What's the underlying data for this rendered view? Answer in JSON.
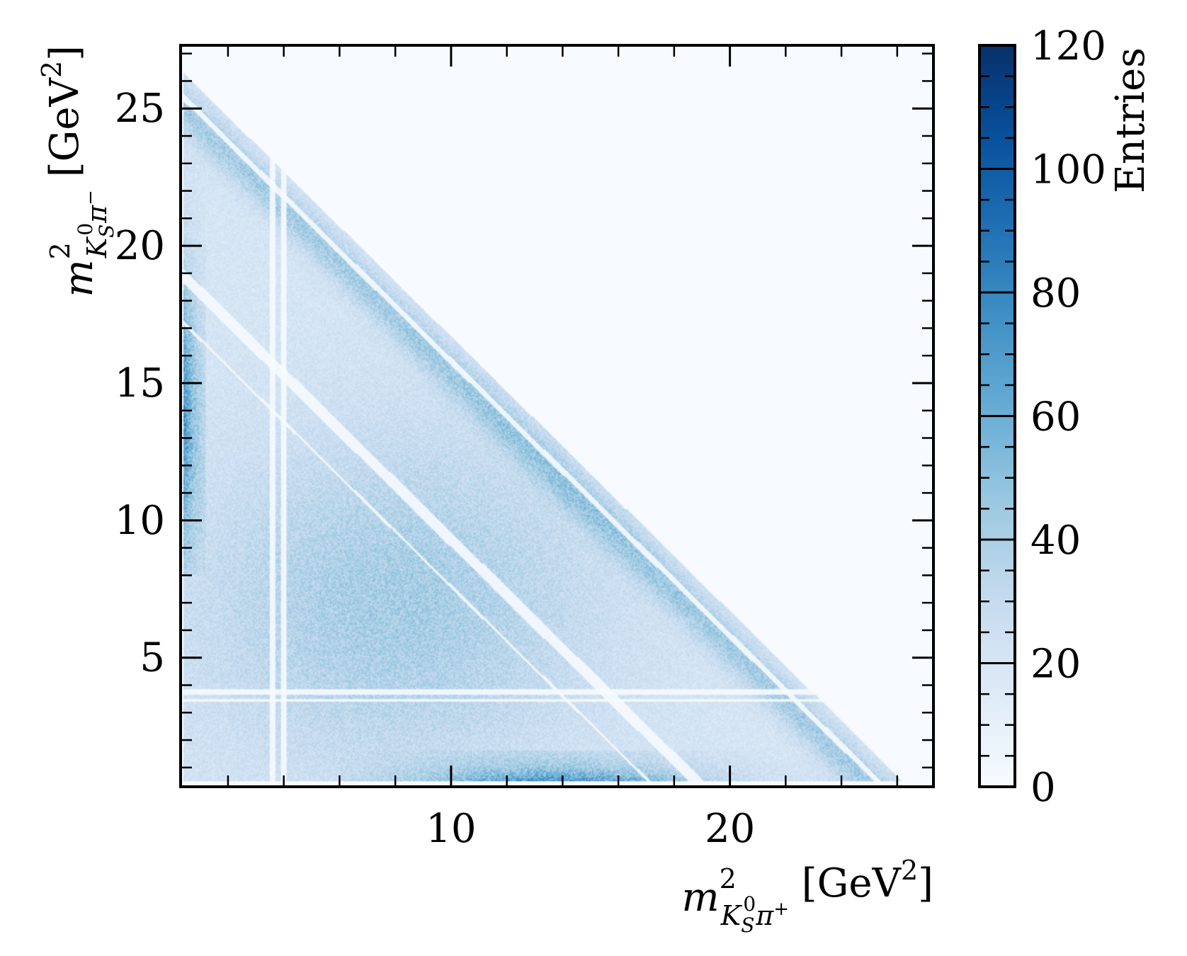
{
  "chart_data": {
    "type": "heatmap",
    "xlabel": {
      "var": "m",
      "sup": "2",
      "sub_base": "K",
      "sub_sub": "S",
      "sub_sup": "0",
      "sub_tail": "π",
      "sub_tail_sup": "+",
      "unit_open": " [GeV",
      "unit_sup": "2",
      "unit_close": "]"
    },
    "ylabel": {
      "var": "m",
      "sup": "2",
      "sub_base": "K",
      "sub_sub": "S",
      "sub_sup": "0",
      "sub_tail": "π",
      "sub_tail_sup": "−",
      "unit_open": " [GeV",
      "unit_sup": "2",
      "unit_close": "]"
    },
    "xlim": [
      0.3,
      27.3
    ],
    "ylim": [
      0.3,
      27.3
    ],
    "xticks": [
      {
        "value": 10,
        "label": "10"
      },
      {
        "value": 20,
        "label": "20"
      }
    ],
    "xminor": [
      2,
      4,
      6,
      8,
      12,
      14,
      16,
      18,
      22,
      24,
      26
    ],
    "yticks": [
      {
        "value": 5,
        "label": "5"
      },
      {
        "value": 10,
        "label": "10"
      },
      {
        "value": 15,
        "label": "15"
      },
      {
        "value": 20,
        "label": "20"
      },
      {
        "value": 25,
        "label": "25"
      }
    ],
    "yminor": [
      1,
      2,
      3,
      4,
      6,
      7,
      8,
      9,
      11,
      12,
      13,
      14,
      16,
      17,
      18,
      19,
      21,
      22,
      23,
      24,
      26,
      27
    ],
    "colorbar": {
      "label": "Entries",
      "range": [
        0,
        120
      ],
      "ticks": [
        {
          "value": 0,
          "label": "0"
        },
        {
          "value": 20,
          "label": "20"
        },
        {
          "value": 40,
          "label": "40"
        },
        {
          "value": 60,
          "label": "60"
        },
        {
          "value": 80,
          "label": "80"
        },
        {
          "value": 100,
          "label": "100"
        },
        {
          "value": 120,
          "label": "120"
        }
      ],
      "minor_step": 5,
      "colormap": "Blues",
      "stops": [
        "#f7fbff",
        "#deebf7",
        "#c6dbef",
        "#9ecae1",
        "#6baed6",
        "#4292c6",
        "#2171b5",
        "#08519c",
        "#08306b"
      ]
    },
    "dalitz_boundary_sum": 27.0,
    "veto_bands": [
      {
        "orientation": "vertical",
        "at": 3.6,
        "width": 0.25
      },
      {
        "orientation": "vertical",
        "at": 4.0,
        "width": 0.2
      },
      {
        "orientation": "horizontal",
        "at": 3.75,
        "width": 0.25
      },
      {
        "orientation": "horizontal",
        "at": 3.45,
        "width": 0.12
      },
      {
        "orientation": "diagonal",
        "sum": 19.3,
        "width": 0.45
      },
      {
        "orientation": "diagonal",
        "sum": 25.8,
        "width": 0.22
      },
      {
        "orientation": "diagonal",
        "sum": 17.6,
        "width": 0.1
      }
    ],
    "density_peaks": [
      {
        "region": "low x edge",
        "x": 0.6,
        "y": 14.0,
        "level": 95
      },
      {
        "region": "low y edge",
        "x": 14.0,
        "y": 0.7,
        "level": 90
      },
      {
        "region": "central band",
        "x": 8.0,
        "y": 7.0,
        "level": 45
      },
      {
        "region": "upper boundary band",
        "x": 14.0,
        "y": 12.5,
        "level": 40
      }
    ]
  }
}
